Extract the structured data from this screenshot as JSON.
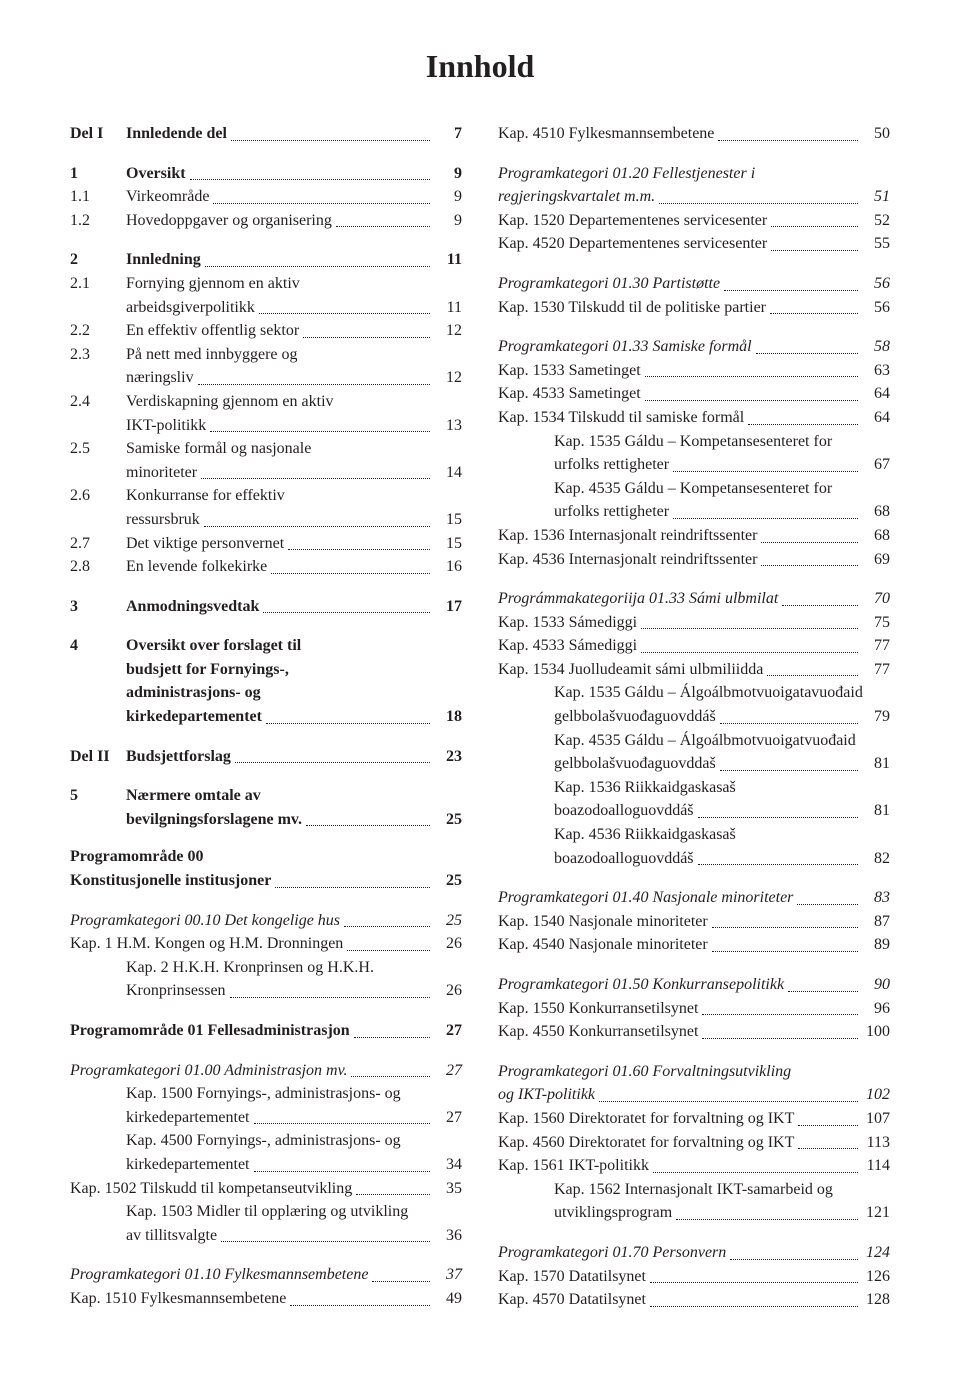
{
  "title": "Innhold",
  "left": {
    "items": [
      {
        "type": "row",
        "num": "Del I",
        "label": "Innledende del",
        "page": "7",
        "bold": true,
        "numClass": "indent-num"
      },
      {
        "type": "gap-md"
      },
      {
        "type": "row",
        "num": "1",
        "label": "Oversikt",
        "page": "9",
        "bold": true,
        "numClass": "indent-num"
      },
      {
        "type": "row",
        "num": "1.1",
        "label": "Virkeområde",
        "page": "9",
        "numClass": "indent-num"
      },
      {
        "type": "row",
        "num": "1.2",
        "label": "Hovedoppgaver og organisering",
        "page": "9",
        "numClass": "indent-num"
      },
      {
        "type": "gap-md"
      },
      {
        "type": "row",
        "num": "2",
        "label": "Innledning",
        "page": "11",
        "bold": true,
        "numClass": "indent-num"
      },
      {
        "type": "multi",
        "num": "2.1",
        "lines": [
          "Fornying gjennom en aktiv"
        ],
        "last": "arbeidsgiverpolitikk",
        "page": "11",
        "numClass": "indent-num",
        "contIndent": "56px"
      },
      {
        "type": "row",
        "num": "2.2",
        "label": "En effektiv offentlig sektor",
        "page": "12",
        "numClass": "indent-num"
      },
      {
        "type": "multi",
        "num": "2.3",
        "lines": [
          "På nett med innbyggere og"
        ],
        "last": "næringsliv",
        "page": "12",
        "numClass": "indent-num",
        "contIndent": "56px"
      },
      {
        "type": "multi",
        "num": "2.4",
        "lines": [
          "Verdiskapning gjennom en aktiv"
        ],
        "last": "IKT-politikk",
        "page": "13",
        "numClass": "indent-num",
        "contIndent": "56px"
      },
      {
        "type": "multi",
        "num": "2.5",
        "lines": [
          "Samiske formål og nasjonale"
        ],
        "last": "minoriteter",
        "page": "14",
        "numClass": "indent-num",
        "contIndent": "56px"
      },
      {
        "type": "multi",
        "num": "2.6",
        "lines": [
          "Konkurranse for effektiv"
        ],
        "last": "ressursbruk",
        "page": "15",
        "numClass": "indent-num",
        "contIndent": "56px"
      },
      {
        "type": "row",
        "num": "2.7",
        "label": "Det viktige personvernet",
        "page": "15",
        "numClass": "indent-num"
      },
      {
        "type": "row",
        "num": "2.8",
        "label": "En levende folkekirke",
        "page": "16",
        "numClass": "indent-num"
      },
      {
        "type": "gap-md"
      },
      {
        "type": "row",
        "num": "3",
        "label": "Anmodningsvedtak",
        "page": "17",
        "bold": true,
        "numClass": "indent-num"
      },
      {
        "type": "gap-md"
      },
      {
        "type": "multi",
        "num": "4",
        "lines": [
          "Oversikt over forslaget til",
          "budsjett for Fornyings-,",
          "administrasjons- og"
        ],
        "last": "kirkedepartementet",
        "page": "18",
        "bold": true,
        "numClass": "indent-num",
        "contIndent": "56px"
      },
      {
        "type": "gap-md"
      },
      {
        "type": "row",
        "num": "Del II",
        "label": "Budsjettforslag",
        "page": "23",
        "bold": true,
        "numClass": "indent-num"
      },
      {
        "type": "gap-md"
      },
      {
        "type": "multi",
        "num": "5",
        "lines": [
          "Nærmere omtale av"
        ],
        "last": "bevilgningsforslagene mv.",
        "page": "25",
        "bold": true,
        "numClass": "indent-num",
        "contIndent": "56px"
      },
      {
        "type": "gap-md"
      },
      {
        "type": "plain",
        "text": "Programområde 00",
        "bold": true
      },
      {
        "type": "row",
        "num": "",
        "label": "Konstitusjonelle institusjoner",
        "page": "25",
        "bold": true
      },
      {
        "type": "gap-md"
      },
      {
        "type": "row",
        "num": "",
        "label": "Programkategori 00.10 Det kongelige hus",
        "page": "25",
        "italic": true
      },
      {
        "type": "row",
        "num": "",
        "label": "Kap. 1 H.M. Kongen og H.M. Dronningen",
        "page": "26"
      },
      {
        "type": "multi",
        "num": "",
        "lines": [
          "Kap. 2 H.K.H. Kronprinsen og H.K.H."
        ],
        "last": "Kronprinsessen",
        "page": "26",
        "contIndent": "56px"
      },
      {
        "type": "gap-md"
      },
      {
        "type": "row",
        "num": "",
        "label": "Programområde 01 Fellesadministrasjon",
        "page": "27",
        "bold": true
      },
      {
        "type": "gap-md"
      },
      {
        "type": "row",
        "num": "",
        "label": "Programkategori 01.00 Administrasjon mv.",
        "page": "27",
        "italic": true
      },
      {
        "type": "multi",
        "num": "",
        "lines": [
          "Kap. 1500 Fornyings-, administrasjons- og"
        ],
        "last": "kirkedepartementet",
        "page": "27",
        "contIndent": "56px"
      },
      {
        "type": "multi",
        "num": "",
        "lines": [
          "Kap. 4500 Fornyings-, administrasjons- og"
        ],
        "last": "kirkedepartementet",
        "page": "34",
        "contIndent": "56px"
      },
      {
        "type": "row",
        "num": "",
        "label": "Kap. 1502 Tilskudd til kompetanseutvikling",
        "page": "35"
      },
      {
        "type": "multi",
        "num": "",
        "lines": [
          "Kap. 1503 Midler til opplæring og utvikling"
        ],
        "last": "av tillitsvalgte",
        "page": "36",
        "contIndent": "56px"
      },
      {
        "type": "gap-md"
      },
      {
        "type": "row",
        "num": "",
        "label": "Programkategori 01.10 Fylkesmannsembetene",
        "page": "37",
        "italic": true
      },
      {
        "type": "row",
        "num": "",
        "label": "Kap. 1510 Fylkesmannsembetene",
        "page": "49"
      }
    ]
  },
  "right": {
    "items": [
      {
        "type": "row",
        "num": "",
        "label": "Kap. 4510 Fylkesmannsembetene",
        "page": "50"
      },
      {
        "type": "gap-md"
      },
      {
        "type": "multi",
        "num": "",
        "lines": [
          "Programkategori 01.20 Fellestjenester i"
        ],
        "last": "regjeringskvartalet m.m.",
        "page": "51",
        "italic": true,
        "contIndent": "0px"
      },
      {
        "type": "row",
        "num": "",
        "label": "Kap. 1520 Departementenes servicesenter",
        "page": "52"
      },
      {
        "type": "row",
        "num": "",
        "label": "Kap. 4520 Departementenes servicesenter",
        "page": "55"
      },
      {
        "type": "gap-md"
      },
      {
        "type": "row",
        "num": "",
        "label": "Programkategori 01.30 Partistøtte",
        "page": "56",
        "italic": true
      },
      {
        "type": "row",
        "num": "",
        "label": "Kap. 1530 Tilskudd til de politiske partier",
        "page": "56"
      },
      {
        "type": "gap-md"
      },
      {
        "type": "row",
        "num": "",
        "label": "Programkategori 01.33 Samiske formål",
        "page": "58",
        "italic": true
      },
      {
        "type": "row",
        "num": "",
        "label": "Kap. 1533 Sametinget",
        "page": "63"
      },
      {
        "type": "row",
        "num": "",
        "label": "Kap. 4533 Sametinget",
        "page": "64"
      },
      {
        "type": "row",
        "num": "",
        "label": "Kap. 1534 Tilskudd til samiske formål",
        "page": "64"
      },
      {
        "type": "multi",
        "num": "",
        "lines": [
          "Kap. 1535 Gáldu – Kompetansesenteret for"
        ],
        "last": "urfolks rettigheter",
        "page": "67",
        "contIndent": "56px"
      },
      {
        "type": "multi",
        "num": "",
        "lines": [
          "Kap. 4535 Gáldu – Kompetansesenteret for"
        ],
        "last": "urfolks rettigheter",
        "page": "68",
        "contIndent": "56px"
      },
      {
        "type": "row",
        "num": "",
        "label": "Kap. 1536 Internasjonalt reindriftssenter",
        "page": "68"
      },
      {
        "type": "row",
        "num": "",
        "label": "Kap. 4536 Internasjonalt reindriftssenter",
        "page": "69"
      },
      {
        "type": "gap-md"
      },
      {
        "type": "row",
        "num": "",
        "label": "Prográmmakategoriija 01.33 Sámi ulbmilat",
        "page": "70",
        "italic": true
      },
      {
        "type": "row",
        "num": "",
        "label": "Kap. 1533 Sámediggi",
        "page": "75"
      },
      {
        "type": "row",
        "num": "",
        "label": "Kap. 4533 Sámediggi",
        "page": "77"
      },
      {
        "type": "row",
        "num": "",
        "label": "Kap. 1534 Juolludeamit sámi ulbmiliidda",
        "page": "77"
      },
      {
        "type": "multi",
        "num": "",
        "lines": [
          "Kap. 1535 Gáldu – Álgoálbmotvuoigatavuođaid"
        ],
        "last": "gelbbolašvuođaguovddáš",
        "page": "79",
        "contIndent": "56px"
      },
      {
        "type": "multi",
        "num": "",
        "lines": [
          "Kap. 4535 Gáldu – Álgoálbmotvuoigatvuođaid"
        ],
        "last": "gelbbolašvuođaguovddaš",
        "page": "81",
        "contIndent": "56px"
      },
      {
        "type": "multi",
        "num": "",
        "lines": [
          "Kap. 1536 Riikkaidgaskasaš"
        ],
        "last": "boazodoalloguovddáš",
        "page": "81",
        "contIndent": "56px"
      },
      {
        "type": "multi",
        "num": "",
        "lines": [
          "Kap. 4536 Riikkaidgaskasaš"
        ],
        "last": "boazodoalloguovddáš",
        "page": "82",
        "contIndent": "56px"
      },
      {
        "type": "gap-md"
      },
      {
        "type": "row",
        "num": "",
        "label": "Programkategori 01.40 Nasjonale minoriteter",
        "page": "83",
        "italic": true
      },
      {
        "type": "row",
        "num": "",
        "label": "Kap. 1540 Nasjonale minoriteter",
        "page": "87"
      },
      {
        "type": "row",
        "num": "",
        "label": "Kap. 4540 Nasjonale minoriteter",
        "page": "89"
      },
      {
        "type": "gap-md"
      },
      {
        "type": "row",
        "num": "",
        "label": "Programkategori 01.50 Konkurransepolitikk",
        "page": "90",
        "italic": true
      },
      {
        "type": "row",
        "num": "",
        "label": "Kap. 1550 Konkurransetilsynet",
        "page": "96"
      },
      {
        "type": "row",
        "num": "",
        "label": "Kap. 4550 Konkurransetilsynet",
        "page": "100"
      },
      {
        "type": "gap-md"
      },
      {
        "type": "multi",
        "num": "",
        "lines": [
          "Programkategori 01.60 Forvaltningsutvikling"
        ],
        "last": "og IKT-politikk",
        "page": "102",
        "italic": true,
        "contIndent": "0px"
      },
      {
        "type": "row",
        "num": "",
        "label": "Kap. 1560 Direktoratet for forvaltning og IKT",
        "page": "107"
      },
      {
        "type": "row",
        "num": "",
        "label": "Kap. 4560 Direktoratet for forvaltning og IKT",
        "page": "113"
      },
      {
        "type": "row",
        "num": "",
        "label": "Kap. 1561 IKT-politikk",
        "page": "114"
      },
      {
        "type": "multi",
        "num": "",
        "lines": [
          "Kap. 1562 Internasjonalt IKT-samarbeid og"
        ],
        "last": "utviklingsprogram",
        "page": "121",
        "contIndent": "56px"
      },
      {
        "type": "gap-md"
      },
      {
        "type": "row",
        "num": "",
        "label": "Programkategori 01.70 Personvern",
        "page": "124",
        "italic": true
      },
      {
        "type": "row",
        "num": "",
        "label": "Kap. 1570 Datatilsynet",
        "page": "126"
      },
      {
        "type": "row",
        "num": "",
        "label": "Kap. 4570 Datatilsynet",
        "page": "128"
      }
    ]
  }
}
